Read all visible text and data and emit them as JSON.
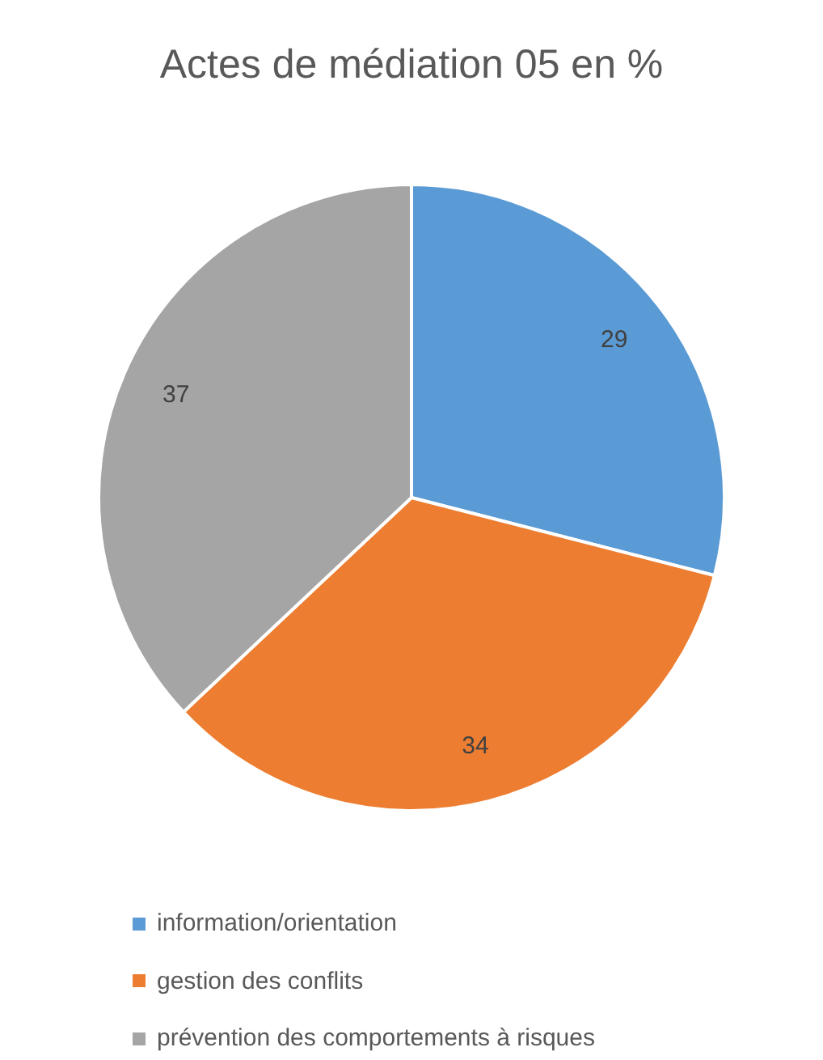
{
  "chart_data": {
    "type": "pie",
    "title": "Actes de médiation 05 en %",
    "categories": [
      "information/orientation",
      "gestion des conflits",
      "prévention des comportements à risques"
    ],
    "values": [
      29,
      34,
      37
    ],
    "colors": [
      "#5b9bd5",
      "#ed7d31",
      "#a5a5a5"
    ],
    "data_labels": true,
    "legend": "bottom"
  }
}
